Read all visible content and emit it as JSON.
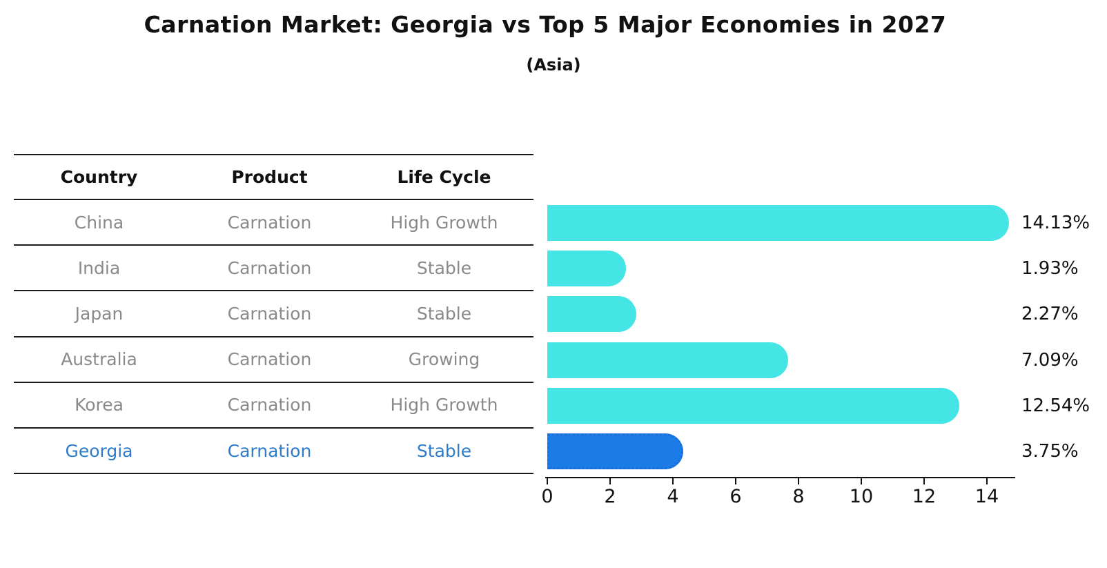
{
  "title": "Carnation Market: Georgia vs Top 5 Major Economies in 2027",
  "subtitle": "(Asia)",
  "table": {
    "headers": {
      "country": "Country",
      "product": "Product",
      "life_cycle": "Life Cycle"
    },
    "rows": [
      {
        "country": "China",
        "product": "Carnation",
        "life_cycle": "High Growth",
        "highlight": false
      },
      {
        "country": "India",
        "product": "Carnation",
        "life_cycle": "Stable",
        "highlight": false
      },
      {
        "country": "Japan",
        "product": "Carnation",
        "life_cycle": "Stable",
        "highlight": false
      },
      {
        "country": "Australia",
        "product": "Carnation",
        "life_cycle": "Growing",
        "highlight": false
      },
      {
        "country": "Korea",
        "product": "Carnation",
        "life_cycle": "High Growth",
        "highlight": false
      },
      {
        "country": "Georgia",
        "product": "Carnation",
        "life_cycle": "Stable",
        "highlight": true
      }
    ]
  },
  "chart_data": {
    "type": "bar",
    "orientation": "horizontal",
    "title": "Carnation Market: Georgia vs Top 5 Major Economies in 2027",
    "subtitle": "(Asia)",
    "categories": [
      "China",
      "India",
      "Japan",
      "Australia",
      "Korea",
      "Georgia"
    ],
    "values": [
      14.13,
      1.93,
      2.27,
      7.09,
      12.54,
      3.75
    ],
    "value_labels": [
      "14.13%",
      "1.93%",
      "2.27%",
      "7.09%",
      "12.54%",
      "3.75%"
    ],
    "highlight_category": "Georgia",
    "x_ticks": [
      0,
      2,
      4,
      6,
      8,
      10,
      12,
      14
    ],
    "xlim": [
      0,
      14.88
    ],
    "grid": false,
    "legend": false,
    "colors": {
      "bar": "#45e5e5",
      "highlight_bar": "#1b7ce8",
      "highlight_bar_border": "#1a6cd9",
      "highlight_text": "#2e7cc9",
      "table_text": "#8a8a8a",
      "axis_text": "#111111"
    }
  }
}
